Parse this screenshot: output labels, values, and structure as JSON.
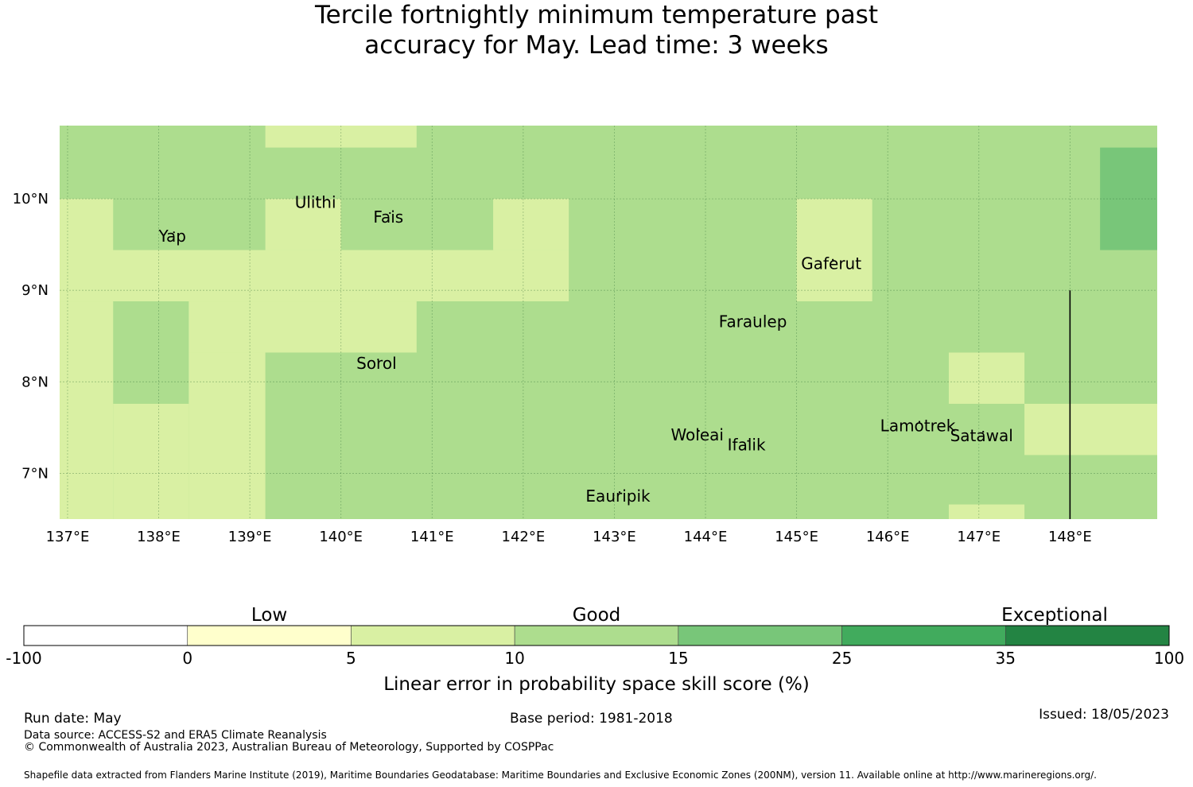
{
  "title": {
    "line1": "Tercile fortnightly minimum temperature past",
    "line2": "accuracy for May. Lead time: 3 weeks"
  },
  "map": {
    "lon_range": [
      136.913,
      148.957
    ],
    "lat_range": [
      6.5,
      10.8
    ],
    "x_ticks": [
      {
        "value": 137,
        "label": "137°E"
      },
      {
        "value": 138,
        "label": "138°E"
      },
      {
        "value": 139,
        "label": "139°E"
      },
      {
        "value": 140,
        "label": "140°E"
      },
      {
        "value": 141,
        "label": "141°E"
      },
      {
        "value": 142,
        "label": "142°E"
      },
      {
        "value": 143,
        "label": "143°E"
      },
      {
        "value": 144,
        "label": "144°E"
      },
      {
        "value": 145,
        "label": "145°E"
      },
      {
        "value": 146,
        "label": "146°E"
      },
      {
        "value": 147,
        "label": "147°E"
      },
      {
        "value": 148,
        "label": "148°E"
      }
    ],
    "y_ticks": [
      {
        "value": 10,
        "label": "10°N"
      },
      {
        "value": 9,
        "label": "9°N"
      },
      {
        "value": 8,
        "label": "8°N"
      },
      {
        "value": 7,
        "label": "7°N"
      }
    ],
    "grid": true,
    "background_class": 3,
    "cells": [
      {
        "lon": [
          139.17,
          140.83
        ],
        "lat": [
          10.56,
          10.8
        ],
        "class": 2
      },
      {
        "lon": [
          148.33,
          148.957
        ],
        "lat": [
          9.44,
          10.56
        ],
        "class": 4
      },
      {
        "lon": [
          136.913,
          137.5
        ],
        "lat": [
          8.88,
          10.0
        ],
        "class": 2
      },
      {
        "lon": [
          139.17,
          140.0
        ],
        "lat": [
          9.44,
          10.0
        ],
        "class": 2
      },
      {
        "lon": [
          141.67,
          142.5
        ],
        "lat": [
          9.44,
          10.0
        ],
        "class": 2
      },
      {
        "lon": [
          145.0,
          145.83
        ],
        "lat": [
          8.88,
          10.0
        ],
        "class": 2
      },
      {
        "lon": [
          136.913,
          142.5
        ],
        "lat": [
          8.88,
          9.44
        ],
        "class": 2
      },
      {
        "lon": [
          136.913,
          137.5
        ],
        "lat": [
          6.5,
          8.88
        ],
        "class": 2
      },
      {
        "lon": [
          138.33,
          140.83
        ],
        "lat": [
          8.32,
          8.88
        ],
        "class": 2
      },
      {
        "lon": [
          138.33,
          139.17
        ],
        "lat": [
          6.5,
          8.32
        ],
        "class": 2
      },
      {
        "lon": [
          137.5,
          138.33
        ],
        "lat": [
          6.5,
          7.76
        ],
        "class": 2
      },
      {
        "lon": [
          146.67,
          147.5
        ],
        "lat": [
          7.76,
          8.32
        ],
        "class": 2
      },
      {
        "lon": [
          147.5,
          148.957
        ],
        "lat": [
          7.2,
          7.76
        ],
        "class": 2
      },
      {
        "lon": [
          146.67,
          147.5
        ],
        "lat": [
          6.5,
          6.66
        ],
        "class": 2
      }
    ],
    "divider_line": {
      "lon": 148.0,
      "lat": [
        6.5,
        9.0
      ]
    },
    "islands": [
      {
        "name": "Ulithi",
        "lon": 139.72,
        "lat": 9.9
      },
      {
        "name": "Fais",
        "lon": 140.52,
        "lat": 9.74
      },
      {
        "name": "Yap",
        "lon": 138.15,
        "lat": 9.53
      },
      {
        "name": "Gaferut",
        "lon": 145.38,
        "lat": 9.23
      },
      {
        "name": "Faraulep",
        "lon": 144.52,
        "lat": 8.6
      },
      {
        "name": "Sorol",
        "lon": 140.39,
        "lat": 8.14
      },
      {
        "name": "Woleai",
        "lon": 143.91,
        "lat": 7.36
      },
      {
        "name": "Lamotrek",
        "lon": 146.33,
        "lat": 7.46
      },
      {
        "name": "Satawal",
        "lon": 147.03,
        "lat": 7.35
      },
      {
        "name": "Ifalik",
        "lon": 144.45,
        "lat": 7.25
      },
      {
        "name": "Eauripik",
        "lon": 143.04,
        "lat": 6.69
      }
    ]
  },
  "colorbar": {
    "boundaries": [
      "-100",
      "0",
      "5",
      "10",
      "15",
      "25",
      "35",
      "100"
    ],
    "colors": [
      "#ffffff",
      "#ffffcc",
      "#d9f0a3",
      "#addd8e",
      "#78c679",
      "#41ab5d",
      "#238443"
    ],
    "categories": [
      {
        "label": "Low",
        "center": 1.5
      },
      {
        "label": "Good",
        "center": 3.5
      },
      {
        "label": "Exceptional",
        "center": 6.3
      }
    ],
    "label": "Linear error in probability space skill score (%)"
  },
  "footer": {
    "run_date": "Run date: May",
    "base_period": "Base period: 1981-2018",
    "issued": "Issued: 18/05/2023",
    "data_source": "Data source: ACCESS-S2 and ERA5 Climate Reanalysis",
    "copyright": "© Commonwealth of Australia 2023, Australian Bureau of Meteorology, Supported by COSPPac",
    "shapefile": "Shapefile data extracted from Flanders Marine Institute (2019), Maritime Boundaries Geodatabase: Maritime Boundaries and Exclusive Economic Zones (200NM), version 11. Available online at http://www.marineregions.org/."
  }
}
